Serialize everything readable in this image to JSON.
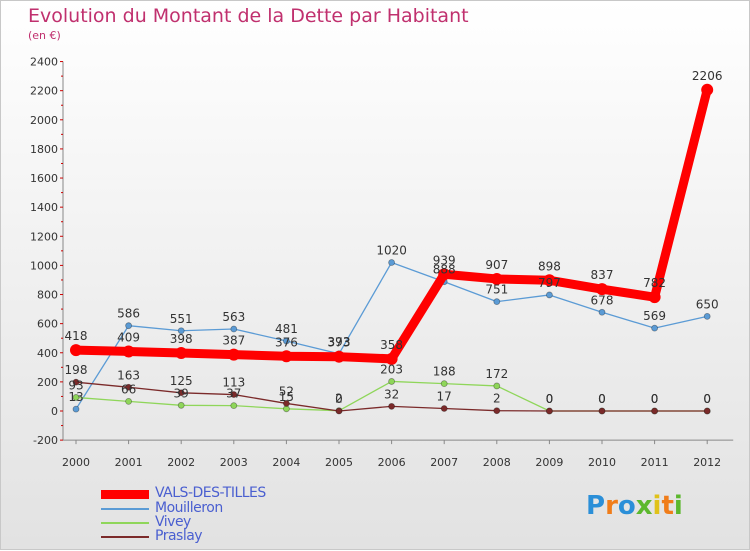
{
  "title": "Evolution du Montant de la Dette par Habitant",
  "subtitle": "(en €)",
  "logo": {
    "text": "Proxiti",
    "colors": [
      "#2b8fd8",
      "#f07d1a",
      "#2b8fd8",
      "#5cb82e",
      "#e0c21a",
      "#f07d1a",
      "#5cb82e"
    ]
  },
  "chart_data": {
    "type": "line",
    "x": [
      "2000",
      "2001",
      "2002",
      "2003",
      "2004",
      "2005",
      "2006",
      "2007",
      "2008",
      "2009",
      "2010",
      "2011",
      "2012"
    ],
    "ylim": [
      -200,
      2400
    ],
    "yticks": [
      "-200",
      "0",
      "200",
      "400",
      "600",
      "800",
      "1000",
      "1200",
      "1400",
      "1600",
      "1800",
      "2000",
      "2200",
      "2400"
    ],
    "grid": false,
    "legend": "bottom-left",
    "series": [
      {
        "name": "Mouilleron",
        "color": "#5b9bd5",
        "values": [
          13,
          586,
          551,
          563,
          481,
          393,
          1020,
          888,
          751,
          797,
          678,
          569,
          650
        ],
        "labels": [
          "13",
          "586",
          "551",
          "563",
          "481",
          "393",
          "1020",
          "888",
          "751",
          "797",
          "678",
          "569",
          "650"
        ]
      },
      {
        "name": "Vivey",
        "color": "#8fd65a",
        "values": [
          93,
          66,
          39,
          37,
          15,
          2,
          203,
          188,
          172,
          0,
          0,
          0,
          0
        ],
        "labels": [
          "93",
          "66",
          "39",
          "37",
          "15",
          "2",
          "203",
          "188",
          "172",
          "0",
          "0",
          "0",
          "0"
        ]
      },
      {
        "name": "Praslay",
        "color": "#7b2a2a",
        "values": [
          198,
          163,
          125,
          113,
          52,
          0,
          32,
          17,
          2,
          0,
          0,
          0,
          0
        ],
        "labels": [
          "198",
          "163",
          "125",
          "113",
          "52",
          "0",
          "32",
          "17",
          "2",
          "0",
          "0",
          "0",
          "0"
        ]
      },
      {
        "name": "VALS-DES-TILLES",
        "color": "#ff0000",
        "thick": true,
        "values": [
          418,
          409,
          398,
          387,
          376,
          373,
          358,
          939,
          907,
          898,
          837,
          782,
          2206
        ],
        "labels": [
          "418",
          "409",
          "398",
          "387",
          "376",
          "373",
          "358",
          "939",
          "907",
          "898",
          "837",
          "782",
          "2206"
        ]
      }
    ]
  }
}
